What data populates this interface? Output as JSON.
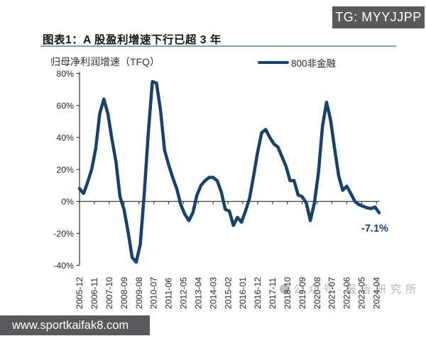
{
  "badge": {
    "text": "TG: MYYJJPP"
  },
  "figure": {
    "caption": "图表1：A 股盈利增速下行已超 3 年",
    "axis_title": "归母净利润增速（TFQ）",
    "legend_label": "800非金融",
    "annotation": "-7.1%"
  },
  "watermark": {
    "text": "公众号·报告研究所"
  },
  "site_bar": {
    "text": "www.sportkaifak8.com"
  },
  "chart_data": {
    "type": "line",
    "title": "归母净利润增速（TFQ）",
    "legend": [
      "800非金融"
    ],
    "legend_position": "top-right",
    "grid": false,
    "ylim": [
      -40,
      80
    ],
    "y_ticks": [
      80,
      60,
      40,
      20,
      0,
      -20,
      -40
    ],
    "y_tick_suffix": "%",
    "x_range": [
      "2005-12",
      "2024-06"
    ],
    "x_tick_labels": [
      "2005-12",
      "2006-11",
      "2007-10",
      "2008-09",
      "2009-08",
      "2010-07",
      "2011-06",
      "2012-05",
      "2013-04",
      "2014-03",
      "2015-02",
      "2016-01",
      "2016-12",
      "2017-11",
      "2018-10",
      "2019-09",
      "2020-08",
      "2021-07",
      "2022-06",
      "2023-05",
      "2024-04"
    ],
    "annotation": {
      "text": "-7.1%",
      "at": "2024-06",
      "value": -7.1
    },
    "series": [
      {
        "name": "800非金融",
        "color": "#17416F",
        "points": [
          [
            "2005-12",
            8
          ],
          [
            "2006-03",
            5
          ],
          [
            "2006-06",
            12
          ],
          [
            "2006-09",
            20
          ],
          [
            "2006-12",
            33
          ],
          [
            "2007-03",
            55
          ],
          [
            "2007-06",
            64
          ],
          [
            "2007-09",
            55
          ],
          [
            "2007-12",
            39
          ],
          [
            "2008-03",
            25
          ],
          [
            "2008-06",
            3
          ],
          [
            "2008-09",
            -5
          ],
          [
            "2008-12",
            -19
          ],
          [
            "2009-03",
            -35
          ],
          [
            "2009-06",
            -38
          ],
          [
            "2009-09",
            -27
          ],
          [
            "2009-12",
            5
          ],
          [
            "2010-03",
            43
          ],
          [
            "2010-06",
            75
          ],
          [
            "2010-09",
            74
          ],
          [
            "2010-12",
            57
          ],
          [
            "2011-03",
            32
          ],
          [
            "2011-06",
            23
          ],
          [
            "2011-09",
            15
          ],
          [
            "2011-12",
            8
          ],
          [
            "2012-03",
            -2
          ],
          [
            "2012-06",
            -8
          ],
          [
            "2012-09",
            -12
          ],
          [
            "2012-12",
            -7
          ],
          [
            "2013-03",
            4
          ],
          [
            "2013-06",
            10
          ],
          [
            "2013-09",
            13
          ],
          [
            "2013-12",
            15
          ],
          [
            "2014-03",
            15
          ],
          [
            "2014-06",
            13
          ],
          [
            "2014-09",
            6
          ],
          [
            "2014-12",
            -5
          ],
          [
            "2015-03",
            -6
          ],
          [
            "2015-06",
            -15
          ],
          [
            "2015-09",
            -10
          ],
          [
            "2015-12",
            -13
          ],
          [
            "2016-03",
            -6
          ],
          [
            "2016-06",
            2
          ],
          [
            "2016-09",
            16
          ],
          [
            "2016-12",
            31
          ],
          [
            "2017-03",
            43
          ],
          [
            "2017-06",
            45
          ],
          [
            "2017-09",
            40
          ],
          [
            "2017-12",
            36
          ],
          [
            "2018-03",
            34
          ],
          [
            "2018-06",
            28
          ],
          [
            "2018-09",
            22
          ],
          [
            "2018-12",
            13
          ],
          [
            "2019-03",
            13
          ],
          [
            "2019-06",
            4
          ],
          [
            "2019-09",
            3
          ],
          [
            "2019-12",
            -1
          ],
          [
            "2020-03",
            -12
          ],
          [
            "2020-06",
            -1
          ],
          [
            "2020-09",
            18
          ],
          [
            "2020-12",
            47
          ],
          [
            "2021-03",
            62
          ],
          [
            "2021-06",
            51
          ],
          [
            "2021-09",
            33
          ],
          [
            "2021-12",
            16
          ],
          [
            "2022-03",
            7
          ],
          [
            "2022-06",
            9.5
          ],
          [
            "2022-09",
            5
          ],
          [
            "2022-12",
            0
          ],
          [
            "2023-03",
            -2
          ],
          [
            "2023-06",
            -3
          ],
          [
            "2023-09",
            -4
          ],
          [
            "2023-12",
            -4.5
          ],
          [
            "2024-03",
            -3.5
          ],
          [
            "2024-06",
            -7.1
          ]
        ]
      }
    ]
  }
}
